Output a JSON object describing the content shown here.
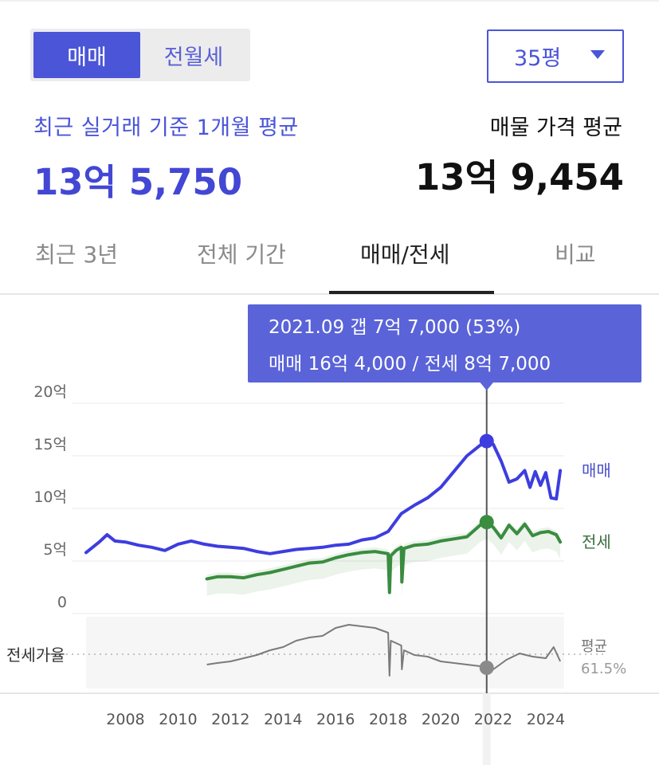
{
  "toggle": {
    "options": [
      "매매",
      "전월세"
    ],
    "selected": "매매"
  },
  "size_select": {
    "value": "35평"
  },
  "summary": {
    "recent_label": "최근 실거래 기준 1개월 평균",
    "recent_price": "13억 5,750",
    "listing_label": "매물 가격 평균",
    "listing_price": "13억 9,454"
  },
  "tabs": [
    {
      "label": "최근 3년"
    },
    {
      "label": "전체 기간"
    },
    {
      "label": "매매/전세",
      "active": true
    },
    {
      "label": "비교"
    }
  ],
  "tooltip": {
    "line1": "2021.09  갭 7억 7,000 (53%)",
    "line2": "매매 16억 4,000 / 전세 8억 7,000"
  },
  "colors": {
    "sale": "#3d3de0",
    "jeonse": "#3a8c3f",
    "ratio": "#7a7a7a",
    "accent": "#4b55d8",
    "tooltip_bg": "#5a63d8"
  },
  "chart_data": {
    "type": "line",
    "x_ticks": [
      "2008",
      "2010",
      "2012",
      "2014",
      "2016",
      "2018",
      "2020",
      "2022",
      "2024"
    ],
    "x_range": [
      2006.5,
      2024.7
    ],
    "y_ticks": [
      "20억",
      "15억",
      "10억",
      "5억",
      "0"
    ],
    "ylim": [
      0,
      20
    ],
    "ylabel": "",
    "series": [
      {
        "name": "매매",
        "color": "#3d3de0",
        "x": [
          2006.5,
          2007.0,
          2007.3,
          2007.6,
          2008.0,
          2008.5,
          2009.0,
          2009.5,
          2010.0,
          2010.5,
          2011.0,
          2011.5,
          2012.0,
          2012.5,
          2013.0,
          2013.5,
          2014.0,
          2014.5,
          2015.0,
          2015.5,
          2016.0,
          2016.5,
          2017.0,
          2017.5,
          2018.0,
          2018.5,
          2019.0,
          2019.5,
          2020.0,
          2020.5,
          2021.0,
          2021.5,
          2021.75,
          2022.0,
          2022.3,
          2022.6,
          2022.9,
          2023.2,
          2023.4,
          2023.6,
          2023.8,
          2024.0,
          2024.2,
          2024.4,
          2024.55
        ],
        "values": [
          5.8,
          6.8,
          7.5,
          6.9,
          6.8,
          6.5,
          6.3,
          6.0,
          6.6,
          6.9,
          6.6,
          6.4,
          6.3,
          6.2,
          5.9,
          5.7,
          5.9,
          6.1,
          6.2,
          6.3,
          6.5,
          6.6,
          7.0,
          7.2,
          7.8,
          9.5,
          10.3,
          11.0,
          12.0,
          13.5,
          15.0,
          16.0,
          16.4,
          16.1,
          14.5,
          12.5,
          12.8,
          13.6,
          12.0,
          13.5,
          12.2,
          13.4,
          11.0,
          10.9,
          13.6
        ]
      },
      {
        "name": "전세",
        "color": "#3a8c3f",
        "x": [
          2011.1,
          2011.5,
          2012.0,
          2012.5,
          2013.0,
          2013.5,
          2014.0,
          2014.5,
          2015.0,
          2015.5,
          2016.0,
          2016.5,
          2017.0,
          2017.5,
          2018.0,
          2018.05,
          2018.1,
          2018.3,
          2018.5,
          2018.52,
          2018.6,
          2019.0,
          2019.5,
          2020.0,
          2020.5,
          2021.0,
          2021.5,
          2021.75,
          2022.0,
          2022.3,
          2022.6,
          2022.9,
          2023.2,
          2023.5,
          2023.8,
          2024.1,
          2024.4,
          2024.55
        ],
        "values": [
          3.3,
          3.5,
          3.5,
          3.4,
          3.7,
          3.9,
          4.2,
          4.5,
          4.8,
          4.9,
          5.3,
          5.6,
          5.8,
          5.9,
          5.7,
          2.0,
          5.5,
          6.0,
          6.3,
          3.0,
          6.2,
          6.5,
          6.6,
          6.9,
          7.1,
          7.3,
          8.4,
          8.7,
          8.2,
          7.2,
          8.4,
          7.6,
          8.5,
          7.4,
          7.7,
          7.8,
          7.5,
          6.8
        ]
      }
    ],
    "highlight": {
      "x": 2021.75,
      "sale": 16.4,
      "jeonse": 8.7
    },
    "ratio_panel": {
      "label": "전세가율",
      "avg_label": "평균",
      "avg_value": "61.5%",
      "average": 61.5,
      "range": [
        40,
        85
      ],
      "x": [
        2011.1,
        2011.5,
        2012.0,
        2012.5,
        2013.0,
        2013.5,
        2014.0,
        2014.5,
        2015.0,
        2015.5,
        2016.0,
        2016.5,
        2017.0,
        2017.5,
        2018.0,
        2018.05,
        2018.1,
        2018.5,
        2018.52,
        2018.6,
        2019.0,
        2019.5,
        2020.0,
        2020.5,
        2021.0,
        2021.5,
        2021.75,
        2022.0,
        2022.5,
        2023.0,
        2023.5,
        2024.0,
        2024.3,
        2024.55
      ],
      "values": [
        55,
        56,
        57,
        59,
        61,
        64,
        66,
        70,
        72,
        73,
        78,
        80,
        79,
        78,
        75,
        48,
        70,
        67,
        52,
        64,
        61,
        60,
        57,
        56,
        55,
        54,
        53,
        52,
        58,
        62,
        60,
        59,
        66,
        57
      ]
    }
  }
}
